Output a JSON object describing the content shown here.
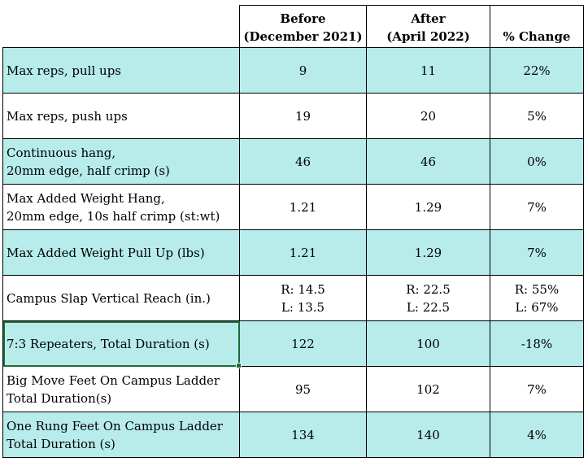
{
  "header": {
    "before_line1": "Before",
    "before_line2": "(December 2021)",
    "after_line1": "After",
    "after_line2": "(April 2022)",
    "change": "% Change"
  },
  "rows": [
    {
      "label": [
        "Max reps, pull ups"
      ],
      "before": [
        "9"
      ],
      "after": [
        "11"
      ],
      "change": [
        "22%"
      ]
    },
    {
      "label": [
        "Max reps, push ups"
      ],
      "before": [
        "19"
      ],
      "after": [
        "20"
      ],
      "change": [
        "5%"
      ]
    },
    {
      "label": [
        "Continuous hang,",
        "20mm edge, half crimp (s)"
      ],
      "before": [
        "46"
      ],
      "after": [
        "46"
      ],
      "change": [
        "0%"
      ]
    },
    {
      "label": [
        "Max Added Weight Hang,",
        "20mm edge, 10s half crimp (st:wt)"
      ],
      "before": [
        "1.21"
      ],
      "after": [
        "1.29"
      ],
      "change": [
        "7%"
      ]
    },
    {
      "label": [
        "Max Added Weight Pull Up (lbs)"
      ],
      "before": [
        "1.21"
      ],
      "after": [
        "1.29"
      ],
      "change": [
        "7%"
      ]
    },
    {
      "label": [
        "Campus Slap Vertical Reach (in.)"
      ],
      "before": [
        "R: 14.5",
        "L: 13.5"
      ],
      "after": [
        "R: 22.5",
        "L: 22.5"
      ],
      "change": [
        "R: 55%",
        "L: 67%"
      ]
    },
    {
      "label": [
        "7:3 Repeaters, Total Duration (s)"
      ],
      "before": [
        "122"
      ],
      "after": [
        "100"
      ],
      "change": [
        "-18%"
      ]
    },
    {
      "label": [
        "Big Move Feet On Campus Ladder",
        "Total Duration(s)"
      ],
      "before": [
        "95"
      ],
      "after": [
        "102"
      ],
      "change": [
        "7%"
      ]
    },
    {
      "label": [
        "One Rung Feet On Campus Ladder",
        "Total Duration (s)"
      ],
      "before": [
        "134"
      ],
      "after": [
        "140"
      ],
      "change": [
        "4%"
      ]
    }
  ],
  "colors": {
    "teal_fill": "#b7ecea",
    "selection": "#1e6b3a"
  }
}
